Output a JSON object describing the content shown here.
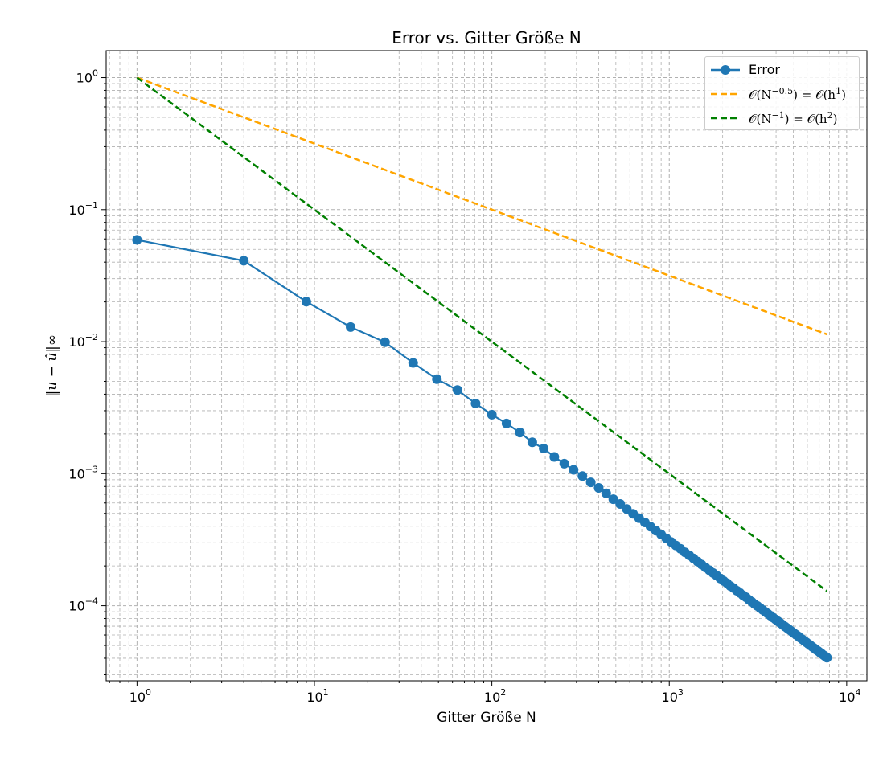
{
  "chart_data": {
    "type": "line",
    "title": "Error vs. Gitter Größe N",
    "xlabel": "Gitter Größe N",
    "ylabel": "‖u − û‖∞",
    "xscale": "log",
    "yscale": "log",
    "xlim": [
      0.67,
      13000
    ],
    "ylim": [
      2.7e-05,
      1.6
    ],
    "grid": "both major and minor, dashed",
    "legend_position": "upper right",
    "x_ticks": [
      {
        "value": 1,
        "base": "10",
        "exp": "0"
      },
      {
        "value": 10,
        "base": "10",
        "exp": "1"
      },
      {
        "value": 100,
        "base": "10",
        "exp": "2"
      },
      {
        "value": 1000,
        "base": "10",
        "exp": "3"
      },
      {
        "value": 10000,
        "base": "10",
        "exp": "4"
      }
    ],
    "y_ticks": [
      {
        "value": 1,
        "base": "10",
        "exp": "0"
      },
      {
        "value": 0.1,
        "base": "10",
        "exp": "−1"
      },
      {
        "value": 0.01,
        "base": "10",
        "exp": "−2"
      },
      {
        "value": 0.001,
        "base": "10",
        "exp": "−3"
      },
      {
        "value": 0.0001,
        "base": "10",
        "exp": "−4"
      }
    ],
    "series": [
      {
        "name": "Error",
        "color": "#1f77b4",
        "style": "solid",
        "marker": "circle",
        "x": [
          1,
          4,
          9,
          16,
          25,
          36,
          49,
          64,
          81,
          100,
          121,
          144,
          169,
          196,
          225,
          256,
          289,
          324,
          361,
          400,
          441,
          484,
          529,
          576,
          625,
          676,
          729,
          784,
          841,
          900,
          961,
          1024,
          1089,
          1156,
          1225,
          1296,
          1369,
          1444,
          1521,
          1600,
          1681,
          1764,
          1849,
          1936,
          2025,
          2116,
          2209,
          2304,
          2401,
          2500,
          2601,
          2704,
          2809,
          2916,
          3025,
          3136,
          3249,
          3364,
          3481,
          3600,
          3721,
          3844,
          3969,
          4096,
          4225,
          4356,
          4489,
          4624,
          4761,
          4900,
          5041,
          5184,
          5329,
          5476,
          5625,
          5776,
          5929,
          6084,
          6241,
          6400,
          6561,
          6724,
          6889,
          7056,
          7225,
          7396,
          7569,
          7744
        ],
        "y": [
          0.059,
          0.041,
          0.0201,
          0.0129,
          0.0099,
          0.0069,
          0.0052,
          0.0043,
          0.0034,
          0.0028,
          0.0024,
          0.00205,
          0.00173,
          0.00155,
          0.00134,
          0.00119,
          0.00107,
          0.00096,
          0.00086,
          0.00078,
          0.00071,
          0.00064,
          0.00059,
          0.00054,
          0.000497,
          0.00046,
          0.000427,
          0.000397,
          0.00037,
          0.000346,
          0.000324,
          0.000304,
          0.000286,
          0.00027,
          0.000254,
          0.000241,
          0.000228,
          0.000216,
          0.000205,
          0.000195,
          0.000186,
          0.000177,
          0.000169,
          0.000161,
          0.000154,
          0.000148,
          0.000141,
          0.000136,
          0.00013,
          0.000125,
          0.00012,
          0.000116,
          0.000111,
          0.000107,
          0.000103,
          9.96e-05,
          9.62e-05,
          9.29e-05,
          8.98e-05,
          8.68e-05,
          8.4e-05,
          8.13e-05,
          7.88e-05,
          7.63e-05,
          7.4e-05,
          7.18e-05,
          6.96e-05,
          6.76e-05,
          6.57e-05,
          6.38e-05,
          6.2e-05,
          6.03e-05,
          5.87e-05,
          5.71e-05,
          5.56e-05,
          5.41e-05,
          5.27e-05,
          5.14e-05,
          5.01e-05,
          4.88e-05,
          4.76e-05,
          4.65e-05,
          4.54e-05,
          4.43e-05,
          4.33e-05,
          4.23e-05,
          4.13e-05,
          4.04e-05
        ]
      },
      {
        "name": "O(N^-0.5) = O(h^1)",
        "label_parts": {
          "pre": "𝒪(N",
          "exp1": "−0.5",
          "mid": ") = 𝒪(h",
          "exp2": "1",
          "post": ")"
        },
        "color": "#ffa500",
        "style": "dashed",
        "x": [
          1,
          7744
        ],
        "y": [
          1,
          0.01136
        ]
      },
      {
        "name": "O(N^-1) = O(h^2)",
        "label_parts": {
          "pre": "𝒪(N",
          "exp1": "−1",
          "mid": ") = 𝒪(h",
          "exp2": "2",
          "post": ")"
        },
        "color": "#008000",
        "style": "dashed",
        "x": [
          1,
          7744
        ],
        "y": [
          1,
          0.000129
        ]
      }
    ]
  }
}
